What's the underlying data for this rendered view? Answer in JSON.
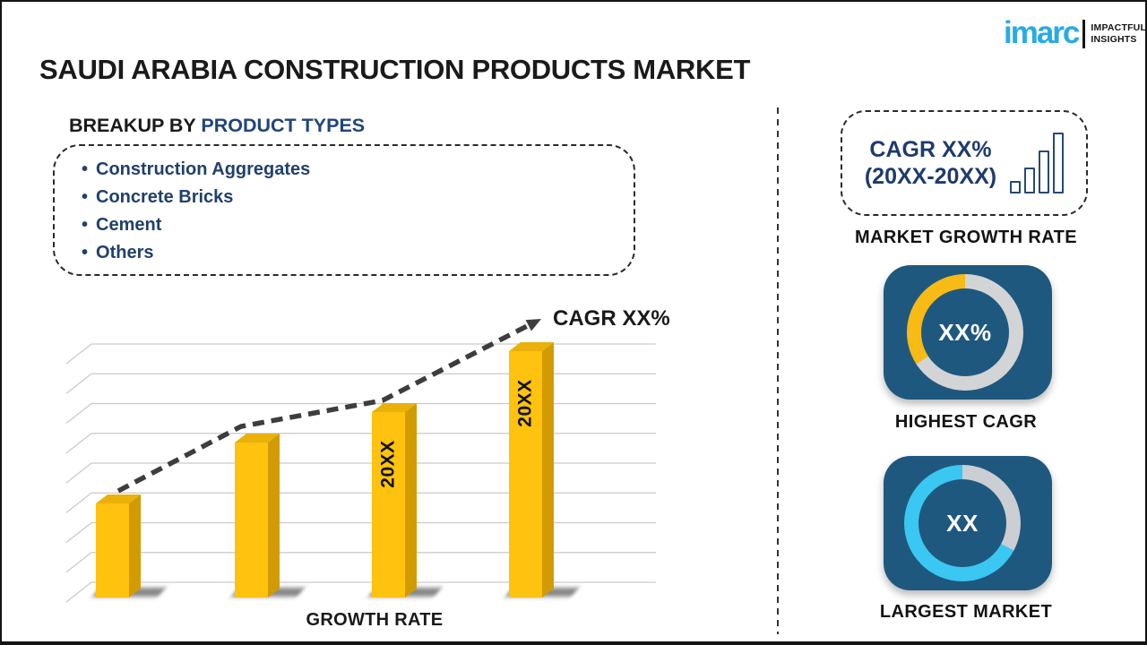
{
  "page": {
    "title": "SAUDI ARABIA CONSTRUCTION PRODUCTS MARKET",
    "colors": {
      "bar_gold": "#fec20f",
      "bar_gold_side": "#d29b04",
      "bar_gold_top": "#e9b109",
      "navy_text": "#21406b",
      "card_blue": "#1f587f",
      "ring_gray": "#d3d4d6",
      "ring_yellow": "#f8ba14",
      "ring_cyan": "#3ac7f2",
      "logo_blue": "#29abe2",
      "text_dark": "#1a1a1a"
    }
  },
  "logo": {
    "wordmark": "imarc",
    "tagline": [
      "IMPACTFUL",
      "INSIGHTS"
    ]
  },
  "breakup": {
    "heading_prefix": "BREAKUP BY",
    "heading_highlight": "PRODUCT TYPES",
    "items": [
      "Construction Aggregates",
      "Concrete Bricks",
      "Cement",
      "Others"
    ]
  },
  "chart_data": {
    "type": "bar",
    "title": "",
    "xlabel": "GROWTH RATE",
    "ylabel": "",
    "categories": [
      "",
      "",
      "20XX",
      "20XX"
    ],
    "values": [
      37,
      61,
      73,
      97
    ],
    "ylim": [
      0,
      100
    ],
    "value_note": "placeholder infographic: bars unlabeled, heights estimated as % of plot area",
    "bar_color": "#fec20f",
    "grid": "horizontal",
    "trend_label": "CAGR XX%",
    "trendline": {
      "style": "dashed",
      "arrow": true,
      "color": "#3d3d3d",
      "rising": true
    }
  },
  "side_panel": {
    "growth_card": {
      "line1": "CAGR XX%",
      "line2": "(20XX-20XX)",
      "icon": "ascending-bar-chart-icon",
      "caption": "MARKET GROWTH RATE"
    },
    "highest_cagr": {
      "value": "XX%",
      "caption": "HIGHEST CAGR",
      "ring": {
        "track_color": "#d3d4d6",
        "filled_color": "#f8ba14",
        "filled_from_deg": 237,
        "filled_to_deg": 360
      }
    },
    "largest_market": {
      "value": "XX",
      "caption": "LARGEST MARKET",
      "ring": {
        "track_color": "#cbced2",
        "filled_color": "#3ac7f2",
        "filled_from_deg": 118,
        "filled_to_deg": 360
      }
    }
  }
}
